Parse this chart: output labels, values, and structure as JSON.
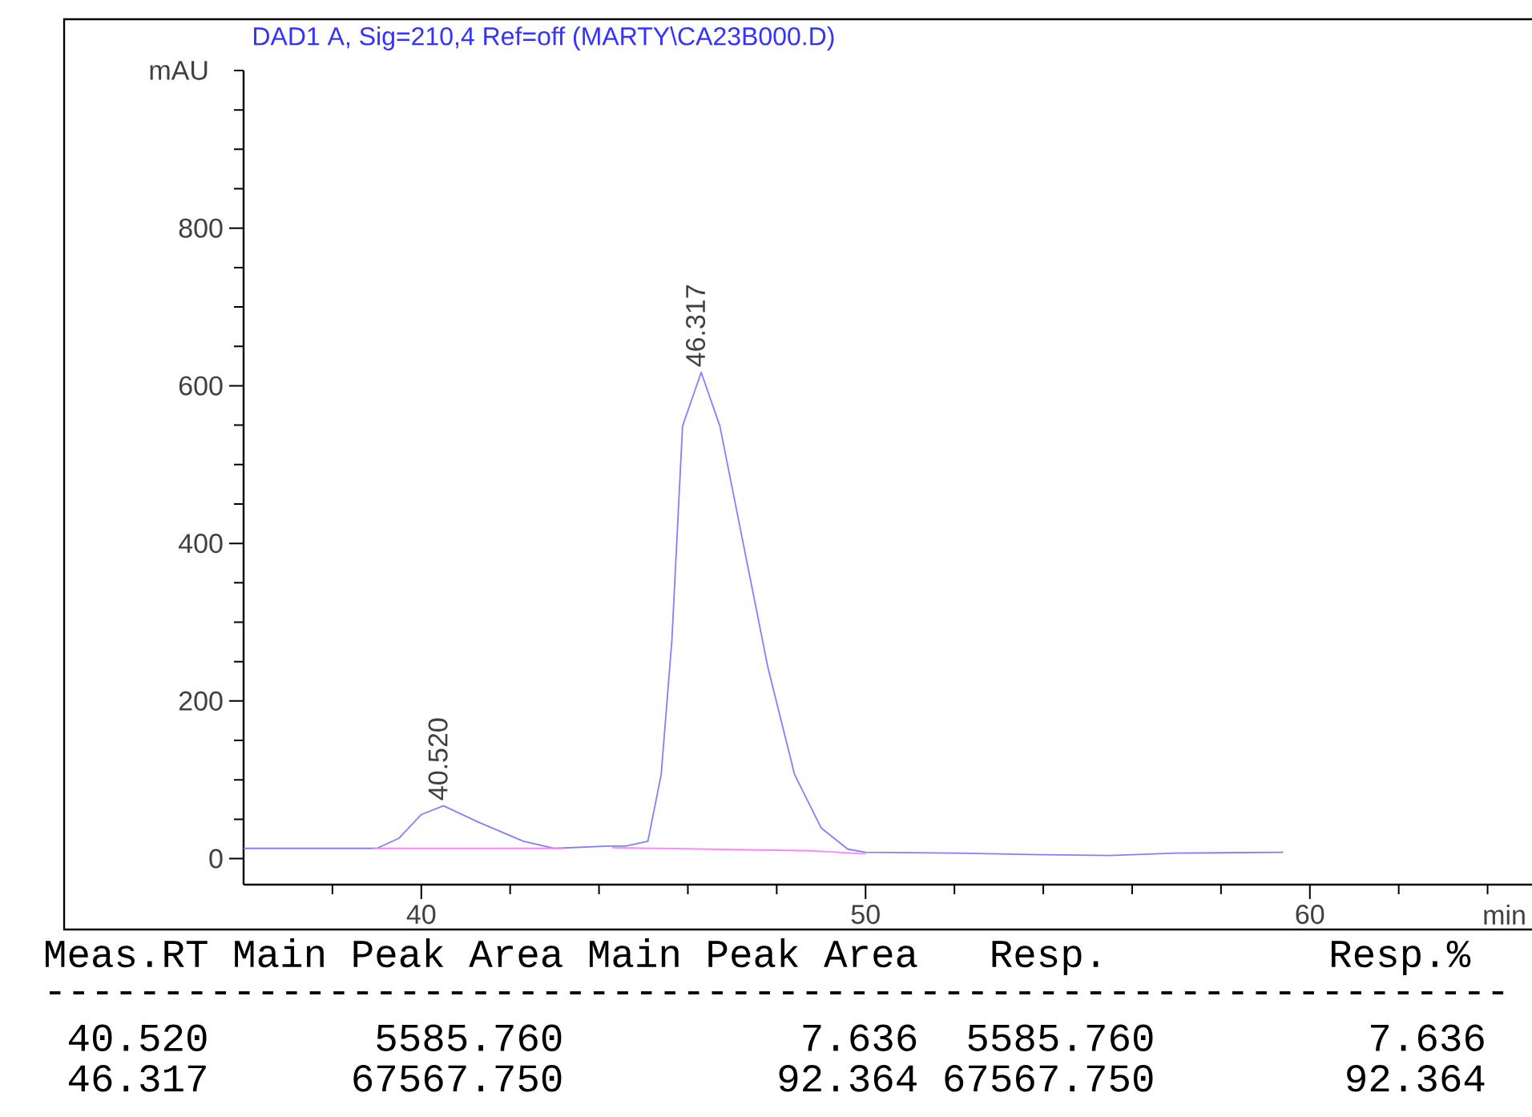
{
  "chart_data": {
    "type": "line",
    "title": "DAD1 A, Sig=210,4 Ref=off (MARTY\\CA23B000.D)",
    "xlabel": "min",
    "ylabel": "mAU",
    "xlim": [
      36,
      65
    ],
    "ylim": [
      -33,
      1000
    ],
    "xticks": [
      {
        "value": 38,
        "label": null
      },
      40,
      {
        "value": 42,
        "label": null
      },
      {
        "value": 44,
        "label": null
      },
      {
        "value": 46,
        "label": null
      },
      {
        "value": 48,
        "label": null
      },
      50,
      {
        "value": 52,
        "label": null
      },
      {
        "value": 54,
        "label": null
      },
      {
        "value": 56,
        "label": null
      },
      {
        "value": 58,
        "label": null
      },
      60,
      {
        "value": 62,
        "label": null
      },
      {
        "value": 64,
        "label": null
      }
    ],
    "yticks": [
      0,
      {
        "value": 50,
        "label": null
      },
      {
        "value": 100,
        "label": null
      },
      {
        "value": 150,
        "label": null
      },
      200,
      {
        "value": 250,
        "label": null
      },
      {
        "value": 300,
        "label": null
      },
      {
        "value": 350,
        "label": null
      },
      400,
      {
        "value": 450,
        "label": null
      },
      {
        "value": 500,
        "label": null
      },
      {
        "value": 550,
        "label": null
      },
      600,
      {
        "value": 650,
        "label": null
      },
      {
        "value": 700,
        "label": null
      },
      {
        "value": 750,
        "label": null
      },
      800,
      {
        "value": 850,
        "label": null
      },
      {
        "value": 900,
        "label": null
      },
      {
        "value": 950,
        "label": null
      },
      {
        "value": 1000,
        "label": null
      }
    ],
    "series": [
      {
        "color": "#8080ff",
        "x": [
          36,
          39,
          39.5,
          40,
          40.5,
          41.3,
          42.3,
          43,
          44.2,
          44.6,
          45.1,
          45.4,
          45.64,
          45.88,
          46.3,
          46.72,
          47.2,
          47.8,
          48.4,
          49,
          49.6,
          50,
          52,
          54,
          55.5,
          57,
          59.4
        ],
        "values": [
          13,
          13,
          26,
          56,
          67,
          46,
          22,
          13,
          16,
          16,
          22,
          107,
          277,
          549,
          617,
          549,
          413,
          243,
          107,
          39,
          12,
          8,
          7,
          5,
          4,
          7,
          8
        ]
      },
      {
        "color": "#ff80ff",
        "x": [
          38.9,
          43.2,
          43.7,
          44.3,
          48.8,
          50
        ],
        "values": [
          13,
          13,
          null,
          14,
          10,
          6
        ]
      }
    ],
    "annotations": [
      {
        "text": "40.520",
        "x": 40.52,
        "y": 67
      },
      {
        "text": "46.317",
        "x": 46.317,
        "y": 617
      },
      "Meas.RT Main Peak Area Main Peak Area   Resp.       Resp.%",
      "--------------------------------------------------------------",
      " 40.520       5585.760          7.636  5585.760         7.636",
      " 46.317      67567.750         92.364 67567.750        92.364"
    ]
  }
}
